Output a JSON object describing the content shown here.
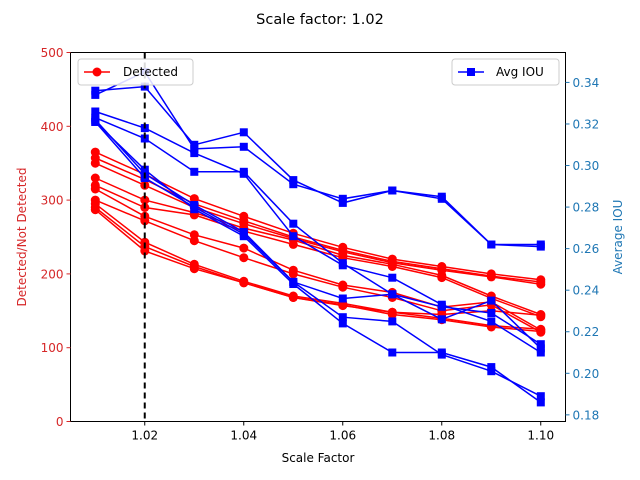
{
  "chart_data": {
    "type": "line",
    "title": "Scale factor: 1.02",
    "xlabel": "Scale Factor",
    "ylabel_left": "Detected/Not Detected",
    "ylabel_right": "Average IOU",
    "xlim": [
      1.005,
      1.105
    ],
    "ylim_left": [
      0,
      500
    ],
    "ylim_right": [
      0.1768,
      0.3544
    ],
    "x_ticks": [
      1.02,
      1.04,
      1.06,
      1.08,
      1.1
    ],
    "x_tick_labels": [
      "1.02",
      "1.04",
      "1.06",
      "1.08",
      "1.10"
    ],
    "y_left_ticks": [
      0,
      100,
      200,
      300,
      400,
      500
    ],
    "y_left_tick_labels": [
      "0",
      "100",
      "200",
      "300",
      "400",
      "500"
    ],
    "y_right_ticks": [
      0.18,
      0.2,
      0.22,
      0.24,
      0.26,
      0.28,
      0.3,
      0.32,
      0.34
    ],
    "y_right_tick_labels": [
      "0.18",
      "0.20",
      "0.22",
      "0.24",
      "0.26",
      "0.28",
      "0.30",
      "0.32",
      "0.34"
    ],
    "vline_x": 1.02,
    "legend_left": {
      "label": "Detected",
      "location": "upper-left"
    },
    "legend_right": {
      "label": "Avg IOU",
      "location": "upper-right"
    },
    "colors": {
      "detected": "#ff0000",
      "iou": "#0000ff",
      "left_axis": "#d62728",
      "right_axis": "#1f77b4"
    },
    "x": [
      1.01,
      1.02,
      1.03,
      1.04,
      1.05,
      1.06,
      1.07,
      1.08,
      1.09,
      1.1
    ],
    "detected_series": [
      [
        365,
        335,
        302,
        278,
        255,
        236,
        220,
        210,
        200,
        192
      ],
      [
        357,
        328,
        295,
        272,
        250,
        232,
        217,
        207,
        197,
        189
      ],
      [
        350,
        320,
        290,
        268,
        248,
        230,
        215,
        205,
        196,
        186
      ],
      [
        330,
        300,
        283,
        262,
        246,
        225,
        213,
        198,
        170,
        145
      ],
      [
        320,
        290,
        280,
        258,
        240,
        222,
        210,
        195,
        167,
        142
      ],
      [
        315,
        278,
        253,
        235,
        205,
        185,
        175,
        155,
        162,
        124
      ],
      [
        300,
        272,
        245,
        222,
        200,
        182,
        168,
        150,
        158,
        121
      ],
      [
        295,
        243,
        213,
        190,
        170,
        160,
        148,
        140,
        130,
        125
      ],
      [
        290,
        237,
        210,
        188,
        168,
        158,
        145,
        138,
        128,
        122
      ],
      [
        287,
        231,
        207,
        188,
        168,
        157,
        148,
        145,
        150,
        144
      ]
    ],
    "iou_series": [
      [
        0.336,
        0.338,
        0.31,
        0.316,
        0.293,
        0.282,
        0.288,
        0.285,
        0.262,
        0.262
      ],
      [
        0.334,
        0.345,
        0.308,
        0.309,
        0.291,
        0.284,
        0.288,
        0.284,
        0.262,
        0.261
      ],
      [
        0.326,
        0.318,
        0.306,
        0.296,
        0.266,
        0.252,
        0.246,
        0.233,
        0.225,
        0.21
      ],
      [
        0.323,
        0.313,
        0.297,
        0.297,
        0.272,
        0.253,
        0.238,
        0.226,
        0.235,
        0.212
      ],
      [
        0.321,
        0.298,
        0.279,
        0.266,
        0.243,
        0.224,
        0.21,
        0.21,
        0.203,
        0.186
      ],
      [
        0.322,
        0.296,
        0.281,
        0.268,
        0.244,
        0.227,
        0.225,
        0.209,
        0.201,
        0.189
      ],
      [
        0.321,
        0.294,
        0.28,
        0.267,
        0.244,
        0.236,
        0.238,
        0.232,
        0.229,
        0.214
      ]
    ]
  }
}
